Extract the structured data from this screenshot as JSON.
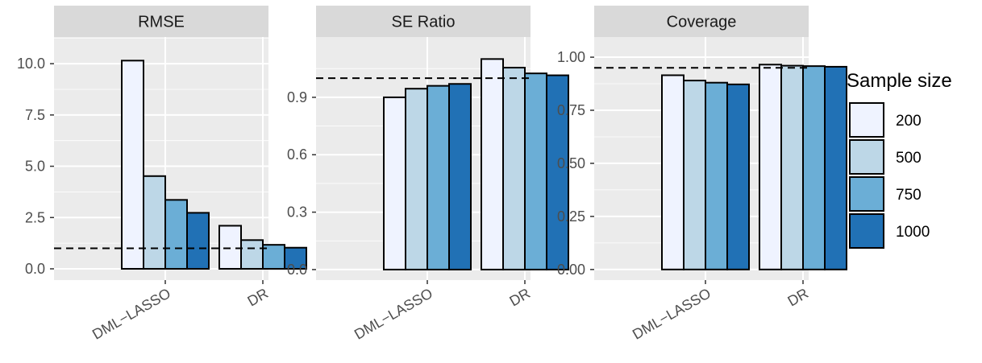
{
  "chart_data": [
    {
      "type": "bar",
      "title": "RMSE",
      "categories": [
        "DML−LASSO",
        "DR"
      ],
      "series": [
        {
          "name": "200",
          "values": [
            10.15,
            2.1
          ]
        },
        {
          "name": "500",
          "values": [
            4.52,
            1.4
          ]
        },
        {
          "name": "750",
          "values": [
            3.36,
            1.17
          ]
        },
        {
          "name": "1000",
          "values": [
            2.73,
            1.03
          ]
        }
      ],
      "reference_line": 1.0,
      "ylim": [
        -0.55,
        11.3
      ],
      "yticks": [
        0.0,
        2.5,
        5.0,
        7.5,
        10.0
      ],
      "ytick_labels": [
        "0.0",
        "2.5",
        "5.0",
        "7.5",
        "10.0"
      ]
    },
    {
      "type": "bar",
      "title": "SE Ratio",
      "categories": [
        "DML−LASSO",
        "DR"
      ],
      "series": [
        {
          "name": "200",
          "values": [
            0.9,
            1.1
          ]
        },
        {
          "name": "500",
          "values": [
            0.945,
            1.055
          ]
        },
        {
          "name": "750",
          "values": [
            0.96,
            1.025
          ]
        },
        {
          "name": "1000",
          "values": [
            0.97,
            1.015
          ]
        }
      ],
      "reference_line": 1.0,
      "ylim": [
        -0.055,
        1.215
      ],
      "yticks": [
        0.0,
        0.3,
        0.6,
        0.9
      ],
      "ytick_labels": [
        "0.0",
        "0.3",
        "0.6",
        "0.9"
      ]
    },
    {
      "type": "bar",
      "title": "Coverage",
      "categories": [
        "DML−LASSO",
        "DR"
      ],
      "series": [
        {
          "name": "200",
          "values": [
            0.915,
            0.965
          ]
        },
        {
          "name": "500",
          "values": [
            0.89,
            0.96
          ]
        },
        {
          "name": "750",
          "values": [
            0.88,
            0.958
          ]
        },
        {
          "name": "1000",
          "values": [
            0.872,
            0.955
          ]
        }
      ],
      "reference_line": 0.95,
      "ylim": [
        -0.05,
        1.095
      ],
      "yticks": [
        0.0,
        0.25,
        0.5,
        0.75,
        1.0
      ],
      "ytick_labels": [
        "0.00",
        "0.25",
        "0.50",
        "0.75",
        "1.00"
      ]
    }
  ],
  "legend": {
    "title": "Sample size",
    "position": "right",
    "entries": [
      {
        "label": "200",
        "color": "#eff3ff"
      },
      {
        "label": "500",
        "color": "#bdd7e7"
      },
      {
        "label": "750",
        "color": "#6baed6"
      },
      {
        "label": "1000",
        "color": "#2171b5"
      }
    ]
  },
  "colors": {
    "panel_background": "#ebebeb",
    "strip_background": "#d9d9d9",
    "gridline": "#ffffff",
    "bar_outline": "#000000"
  }
}
